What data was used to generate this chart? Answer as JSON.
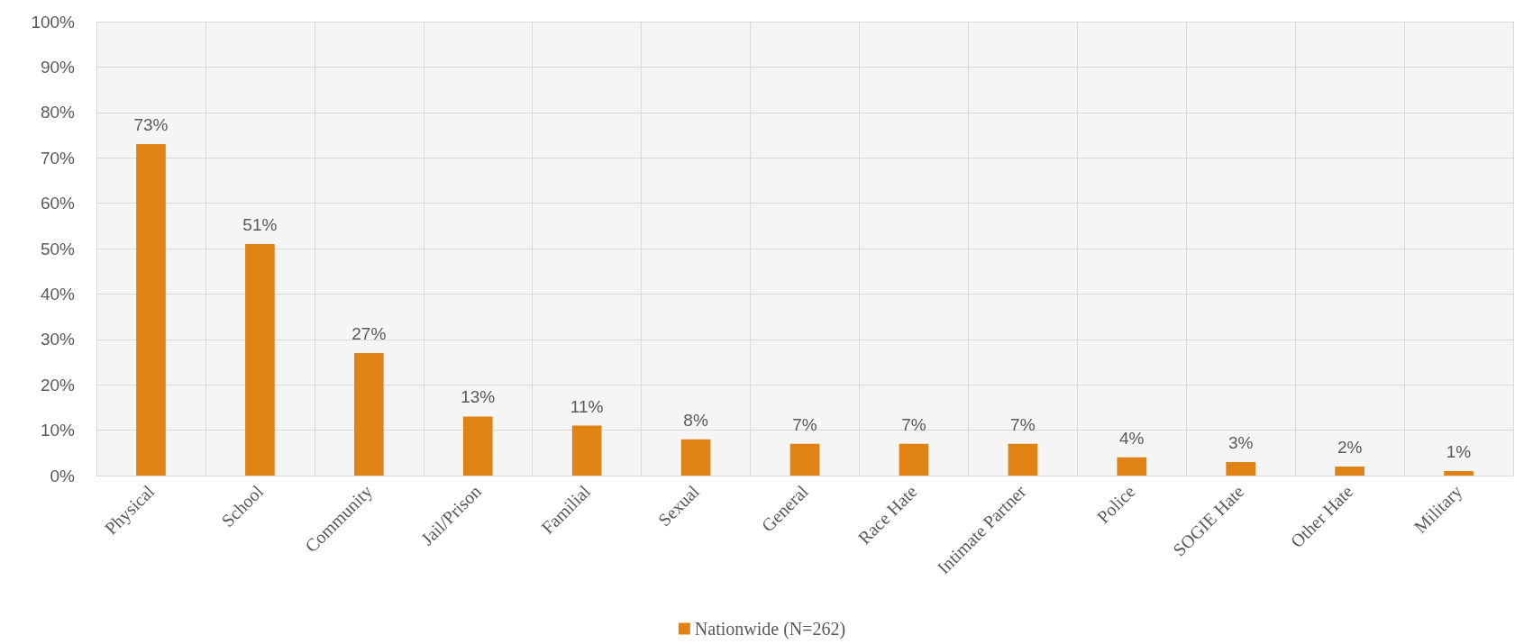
{
  "chart_data": {
    "type": "bar",
    "categories": [
      "Physical",
      "School",
      "Community",
      "Jail/Prison",
      "Familial",
      "Sexual",
      "General",
      "Race Hate",
      "Intimate Partner",
      "Police",
      "SOGIE Hate",
      "Other Hate",
      "Military"
    ],
    "series": [
      {
        "name": "Nationwide (N=262)",
        "color": "#e08214",
        "values": [
          73,
          51,
          27,
          13,
          11,
          8,
          7,
          7,
          7,
          4,
          3,
          2,
          1
        ],
        "value_labels": [
          "73%",
          "51%",
          "27%",
          "13%",
          "11%",
          "8%",
          "7%",
          "7%",
          "7%",
          "4%",
          "3%",
          "2%",
          "1%"
        ]
      }
    ],
    "ylim": [
      0,
      100
    ],
    "yticks": [
      {
        "value": 0,
        "label": "0%"
      },
      {
        "value": 10,
        "label": "10%"
      },
      {
        "value": 20,
        "label": "20%"
      },
      {
        "value": 30,
        "label": "30%"
      },
      {
        "value": 40,
        "label": "40%"
      },
      {
        "value": 50,
        "label": "50%"
      },
      {
        "value": 60,
        "label": "60%"
      },
      {
        "value": 70,
        "label": "70%"
      },
      {
        "value": 80,
        "label": "80%"
      },
      {
        "value": 90,
        "label": "90%"
      },
      {
        "value": 100,
        "label": "100%"
      }
    ],
    "grid": true,
    "legend": "bottom"
  }
}
